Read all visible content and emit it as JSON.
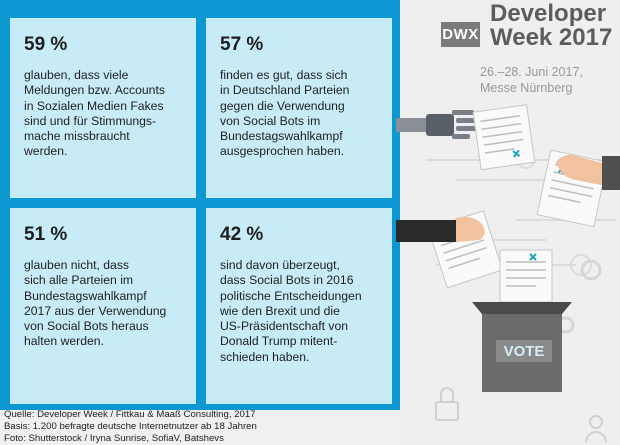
{
  "cards": [
    {
      "percent": "59 %",
      "text": "glauben, dass viele\nMeldungen bzw. Accounts\nin Sozialen Medien Fakes\nsind und für Stimmungs-\nmache missbraucht\nwerden."
    },
    {
      "percent": "57 %",
      "text": "finden es gut, dass sich\nin Deutschland Parteien\ngegen die Verwendung\nvon Social Bots im\nBundestagswahlkampf\nausgesprochen haben."
    },
    {
      "percent": "51 %",
      "text": "glauben nicht, dass\nsich alle Parteien im\nBundestagswahlkampf\n2017 aus der Verwendung\nvon Social Bots heraus\nhalten werden."
    },
    {
      "percent": "42 %",
      "text": "sind davon überzeugt,\ndass Social Bots in 2016\npolitische Entscheidungen\nwie den Brexit und die\nUS-Präsidentschaft von\nDonald Trump mitent-\nschieden haben."
    }
  ],
  "logo": {
    "abbr": "DWX",
    "line1": "Developer",
    "line2": "Week 2017"
  },
  "event": {
    "info": "26.–28. Juni 2017,\nMesse Nürnberg"
  },
  "ballot_box": {
    "label": "VOTE"
  },
  "footer": {
    "source": "Quelle: Developer Week / Fittkau & Maaß Consulting, 2017",
    "basis": "Basis: 1.200 befragte deutsche Internetnutzer ab 18 Jahren",
    "photo": "Foto: Shutterstock / Iryna Sunrise, SofiaV, Batshevs"
  },
  "colors": {
    "frame": "#0d98d4",
    "card": "#c7ecf8",
    "vote_text": "#d7ecf5",
    "ballot_box": "#6b6b6b"
  }
}
